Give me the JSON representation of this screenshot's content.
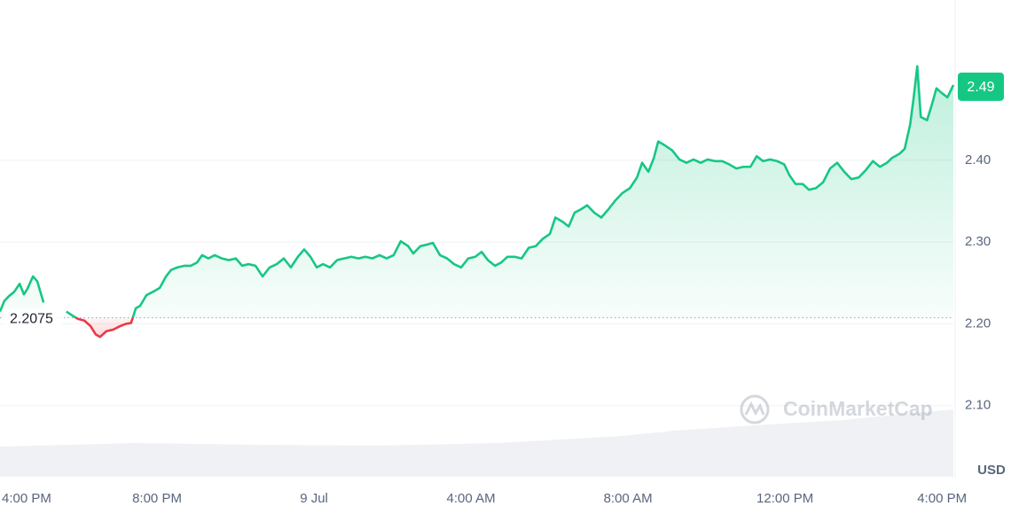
{
  "chart_data": {
    "type": "line",
    "watermark": "CoinMarketCap",
    "y_unit": "USD",
    "baseline": 2.2075,
    "current_price": 2.49,
    "x": [
      0,
      0.11,
      0.23,
      0.36,
      0.5,
      0.61,
      0.7,
      0.84,
      0.95,
      1.11,
      1.4,
      1.69,
      1.85,
      1.99,
      2.15,
      2.31,
      2.44,
      2.55,
      2.71,
      2.89,
      3.05,
      3.21,
      3.34,
      3.46,
      3.57,
      3.73,
      3.89,
      4.07,
      4.23,
      4.36,
      4.52,
      4.7,
      4.86,
      5.02,
      5.15,
      5.31,
      5.47,
      5.65,
      5.83,
      6.01,
      6.17,
      6.33,
      6.51,
      6.69,
      6.87,
      7.05,
      7.23,
      7.41,
      7.59,
      7.75,
      7.91,
      8.07,
      8.23,
      8.41,
      8.59,
      8.77,
      8.95,
      9.13,
      9.31,
      9.49,
      9.67,
      9.85,
      10.03,
      10.21,
      10.4,
      10.53,
      10.71,
      10.89,
      11.03,
      11.21,
      11.39,
      11.57,
      11.75,
      11.93,
      12.11,
      12.27,
      12.43,
      12.61,
      12.77,
      12.93,
      13.11,
      13.29,
      13.47,
      13.65,
      13.83,
      14.01,
      14.15,
      14.33,
      14.49,
      14.64,
      14.8,
      14.96,
      15.14,
      15.32,
      15.5,
      15.68,
      15.86,
      16.05,
      16.23,
      16.36,
      16.52,
      16.66,
      16.77,
      16.95,
      17.13,
      17.31,
      17.49,
      17.67,
      17.85,
      18.03,
      18.21,
      18.4,
      18.58,
      18.76,
      18.94,
      19.12,
      19.28,
      19.44,
      19.62,
      19.8,
      19.98,
      20.11,
      20.27,
      20.45,
      20.61,
      20.79,
      20.97,
      21.15,
      21.33,
      21.51,
      21.69,
      21.88,
      22.06,
      22.24,
      22.42,
      22.6,
      22.73,
      22.92,
      23.05,
      23.19,
      23.28,
      23.37,
      23.46,
      23.62,
      23.73,
      23.86,
      24.0,
      24.14,
      24.29
    ],
    "series": [
      {
        "color": "#16c784",
        "color_below": "#ea3943",
        "values": [
          2.215,
          2.228,
          2.234,
          2.239,
          2.249,
          2.236,
          2.243,
          2.258,
          2.252,
          2.226,
          null,
          2.215,
          2.21,
          2.206,
          2.204,
          2.197,
          2.187,
          2.184,
          2.191,
          2.193,
          2.197,
          2.2,
          2.201,
          2.219,
          2.222,
          2.235,
          2.239,
          2.244,
          2.258,
          2.266,
          2.269,
          2.271,
          2.271,
          2.275,
          2.284,
          2.28,
          2.284,
          2.28,
          2.278,
          2.28,
          2.271,
          2.273,
          2.271,
          2.258,
          2.269,
          2.273,
          2.28,
          2.269,
          2.282,
          2.291,
          2.282,
          2.269,
          2.273,
          2.269,
          2.278,
          2.28,
          2.282,
          2.28,
          2.282,
          2.28,
          2.284,
          2.28,
          2.284,
          2.301,
          2.295,
          2.286,
          2.295,
          2.297,
          2.299,
          2.284,
          2.28,
          2.273,
          2.269,
          2.28,
          2.282,
          2.288,
          2.278,
          2.271,
          2.275,
          2.282,
          2.282,
          2.28,
          2.293,
          2.295,
          2.304,
          2.31,
          2.33,
          2.325,
          2.319,
          2.336,
          2.34,
          2.345,
          2.336,
          2.33,
          2.34,
          2.351,
          2.36,
          2.366,
          2.379,
          2.397,
          2.386,
          2.403,
          2.423,
          2.418,
          2.412,
          2.401,
          2.397,
          2.401,
          2.397,
          2.401,
          2.399,
          2.399,
          2.395,
          2.39,
          2.392,
          2.392,
          2.405,
          2.399,
          2.401,
          2.399,
          2.395,
          2.382,
          2.371,
          2.371,
          2.364,
          2.366,
          2.373,
          2.39,
          2.397,
          2.386,
          2.377,
          2.379,
          2.388,
          2.399,
          2.392,
          2.397,
          2.403,
          2.408,
          2.414,
          2.444,
          2.477,
          2.515,
          2.453,
          2.449,
          2.466,
          2.488,
          2.482,
          2.477,
          2.492
        ]
      }
    ],
    "xlim": [
      0,
      24.29
    ],
    "xticks": [
      {
        "value": 0,
        "label": "4:00 PM"
      },
      {
        "value": 4,
        "label": "8:00 PM"
      },
      {
        "value": 8,
        "label": "9 Jul"
      },
      {
        "value": 12,
        "label": "4:00 AM"
      },
      {
        "value": 16,
        "label": "8:00 AM"
      },
      {
        "value": 20,
        "label": "12:00 PM"
      },
      {
        "value": 24,
        "label": "4:00 PM"
      }
    ],
    "ylim": [
      2.013,
      2.596
    ],
    "yticks": [
      {
        "value": 2.1,
        "label": "2.10"
      },
      {
        "value": 2.2,
        "label": "2.20"
      },
      {
        "value": 2.3,
        "label": "2.30"
      },
      {
        "value": 2.4,
        "label": "2.40"
      }
    ],
    "grid": true
  }
}
